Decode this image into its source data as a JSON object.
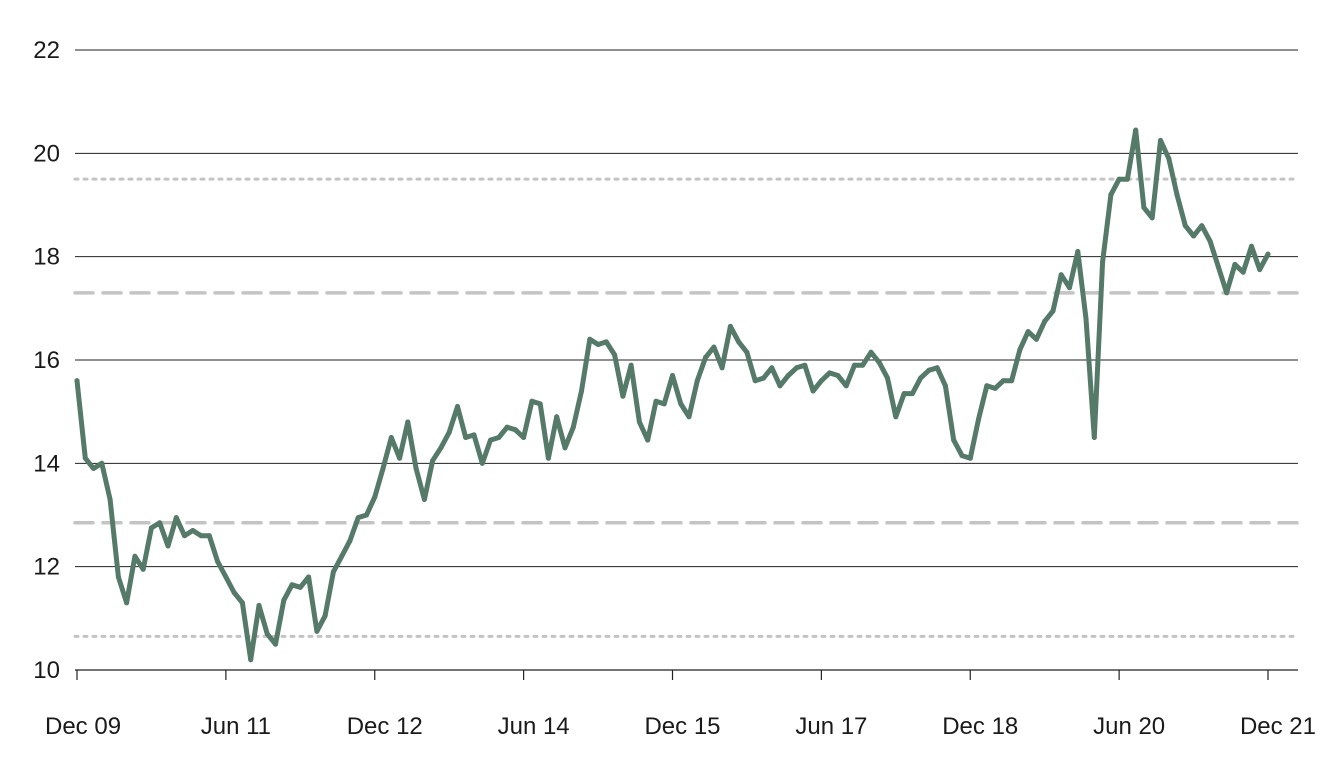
{
  "chart_data": {
    "type": "line",
    "title": "",
    "xlabel": "",
    "ylabel": "",
    "ylim": [
      10,
      22
    ],
    "yticks": [
      10,
      12,
      14,
      16,
      18,
      20,
      22
    ],
    "x_start": "2009-12",
    "x_end": "2021-12",
    "xticks": [
      {
        "label": "Dec 09",
        "date": "2009-12"
      },
      {
        "label": "Jun 11",
        "date": "2011-06"
      },
      {
        "label": "Dec 12",
        "date": "2012-12"
      },
      {
        "label": "Jun 14",
        "date": "2014-06"
      },
      {
        "label": "Dec 15",
        "date": "2015-12"
      },
      {
        "label": "Jun 17",
        "date": "2017-06"
      },
      {
        "label": "Dec 18",
        "date": "2018-12"
      },
      {
        "label": "Jun 20",
        "date": "2020-06"
      },
      {
        "label": "Dec 21",
        "date": "2021-12"
      }
    ],
    "grid": true,
    "legend": "none",
    "colors": {
      "line": "#557a69",
      "grid": "#222222",
      "reference": "#c4c4c4"
    },
    "reference_lines": [
      {
        "y": 19.5,
        "style": "dotted"
      },
      {
        "y": 17.3,
        "style": "dashed"
      },
      {
        "y": 12.85,
        "style": "dashed"
      },
      {
        "y": 10.65,
        "style": "dotted"
      }
    ],
    "series": [
      {
        "x": [
          "2009-12",
          "2010-01",
          "2010-02",
          "2010-03",
          "2010-04",
          "2010-05",
          "2010-06",
          "2010-07",
          "2010-08",
          "2010-09",
          "2010-10",
          "2010-11",
          "2010-12",
          "2011-01",
          "2011-02",
          "2011-03",
          "2011-04",
          "2011-05",
          "2011-06",
          "2011-07",
          "2011-08",
          "2011-09",
          "2011-10",
          "2011-11",
          "2011-12",
          "2012-01",
          "2012-02",
          "2012-03",
          "2012-04",
          "2012-05",
          "2012-06",
          "2012-07",
          "2012-08",
          "2012-09",
          "2012-10",
          "2012-11",
          "2012-12",
          "2013-01",
          "2013-02",
          "2013-03",
          "2013-04",
          "2013-05",
          "2013-06",
          "2013-07",
          "2013-08",
          "2013-09",
          "2013-10",
          "2013-11",
          "2013-12",
          "2014-01",
          "2014-02",
          "2014-03",
          "2014-04",
          "2014-05",
          "2014-06",
          "2014-07",
          "2014-08",
          "2014-09",
          "2014-10",
          "2014-11",
          "2014-12",
          "2015-01",
          "2015-02",
          "2015-03",
          "2015-04",
          "2015-05",
          "2015-06",
          "2015-07",
          "2015-08",
          "2015-09",
          "2015-10",
          "2015-11",
          "2015-12",
          "2016-01",
          "2016-02",
          "2016-03",
          "2016-04",
          "2016-05",
          "2016-06",
          "2016-07",
          "2016-08",
          "2016-09",
          "2016-10",
          "2016-11",
          "2016-12",
          "2017-01",
          "2017-02",
          "2017-03",
          "2017-04",
          "2017-05",
          "2017-06",
          "2017-07",
          "2017-08",
          "2017-09",
          "2017-10",
          "2017-11",
          "2017-12",
          "2018-01",
          "2018-02",
          "2018-03",
          "2018-04",
          "2018-05",
          "2018-06",
          "2018-07",
          "2018-08",
          "2018-09",
          "2018-10",
          "2018-11",
          "2018-12",
          "2019-01",
          "2019-02",
          "2019-03",
          "2019-04",
          "2019-05",
          "2019-06",
          "2019-07",
          "2019-08",
          "2019-09",
          "2019-10",
          "2019-11",
          "2019-12",
          "2020-01",
          "2020-02",
          "2020-03",
          "2020-04",
          "2020-05",
          "2020-06",
          "2020-07",
          "2020-08",
          "2020-09",
          "2020-10",
          "2020-11",
          "2020-12",
          "2021-01",
          "2021-02",
          "2021-03",
          "2021-04",
          "2021-05",
          "2021-06",
          "2021-07",
          "2021-08",
          "2021-09",
          "2021-10",
          "2021-11",
          "2021-12"
        ],
        "values": [
          15.6,
          14.1,
          13.9,
          14.0,
          13.3,
          11.8,
          11.3,
          12.2,
          11.95,
          12.75,
          12.85,
          12.4,
          12.95,
          12.6,
          12.7,
          12.6,
          12.6,
          12.1,
          11.8,
          11.5,
          11.3,
          10.2,
          11.25,
          10.7,
          10.5,
          11.35,
          11.65,
          11.6,
          11.8,
          10.75,
          11.05,
          11.9,
          12.2,
          12.5,
          12.95,
          13.0,
          13.35,
          13.9,
          14.5,
          14.1,
          14.8,
          13.9,
          13.3,
          14.05,
          14.3,
          14.6,
          15.1,
          14.5,
          14.55,
          14.0,
          14.45,
          14.5,
          14.7,
          14.65,
          14.5,
          15.2,
          15.15,
          14.1,
          14.9,
          14.3,
          14.7,
          15.4,
          16.4,
          16.3,
          16.35,
          16.1,
          15.3,
          15.9,
          14.8,
          14.45,
          15.2,
          15.15,
          15.7,
          15.15,
          14.9,
          15.6,
          16.05,
          16.25,
          15.85,
          16.65,
          16.35,
          16.15,
          15.6,
          15.65,
          15.85,
          15.5,
          15.7,
          15.85,
          15.9,
          15.4,
          15.6,
          15.75,
          15.7,
          15.5,
          15.9,
          15.9,
          16.15,
          15.95,
          15.65,
          14.9,
          15.35,
          15.35,
          15.65,
          15.8,
          15.85,
          15.5,
          14.45,
          14.15,
          14.1,
          14.85,
          15.5,
          15.45,
          15.6,
          15.6,
          16.2,
          16.55,
          16.4,
          16.75,
          16.95,
          17.65,
          17.4,
          18.1,
          16.8,
          14.5,
          17.9,
          19.2,
          19.5,
          19.5,
          20.45,
          18.95,
          18.75,
          20.25,
          19.9,
          19.2,
          18.6,
          18.4,
          18.6,
          18.3,
          17.8,
          17.3,
          17.85,
          17.7,
          18.2,
          17.75,
          18.05
        ]
      }
    ]
  }
}
